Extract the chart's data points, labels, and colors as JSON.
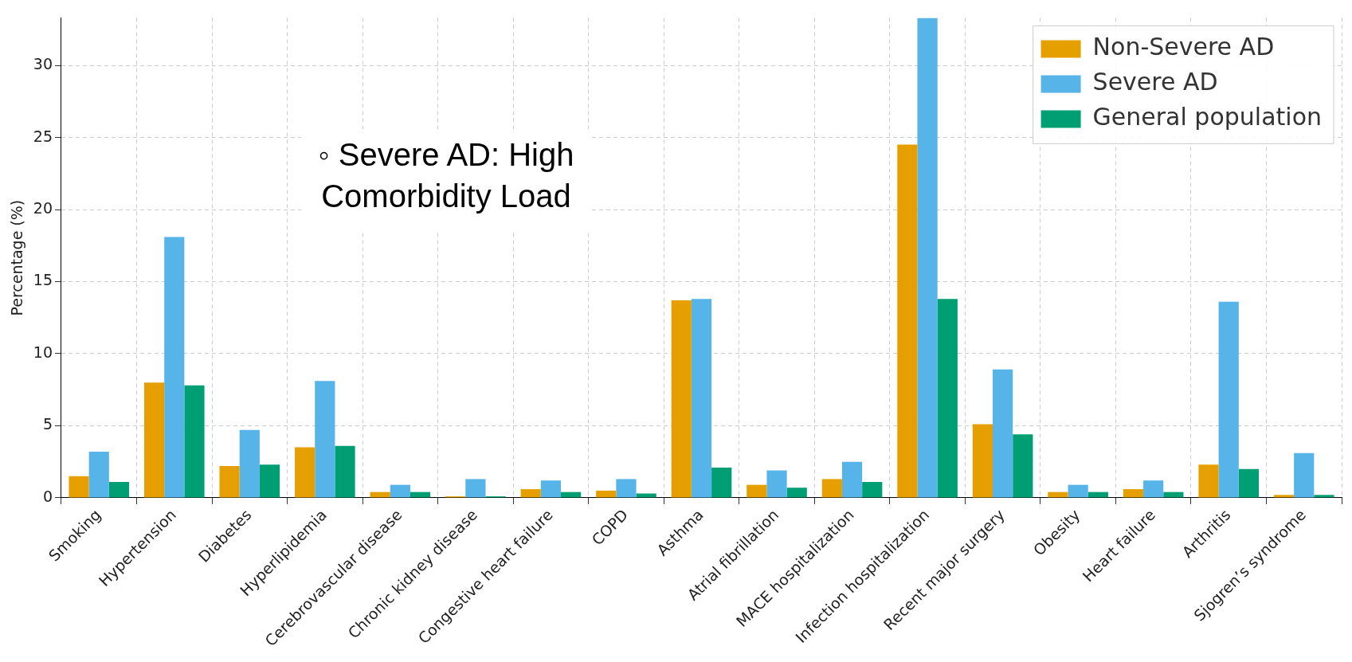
{
  "chart_data": {
    "type": "bar",
    "ylabel": "Percentage (%)",
    "categories": [
      "Smoking",
      "Hypertension",
      "Diabetes",
      "Hyperlipidemia",
      "Cerebrovascular disease",
      "Chronic kidney disease",
      "Congestive heart failure",
      "COPD",
      "Asthma",
      "Atrial fibrillation",
      "MACE hospitalization",
      "Infection hospitalization",
      "Recent major surgery",
      "Obesity",
      "Heart failure",
      "Arthritis",
      "Sjogren’s syndrome"
    ],
    "series": [
      {
        "name": "Non-Severe AD",
        "color": "#e69f00",
        "values": [
          1.5,
          8.0,
          2.2,
          3.5,
          0.4,
          0.1,
          0.6,
          0.5,
          13.7,
          0.9,
          1.3,
          24.5,
          5.1,
          0.4,
          0.6,
          2.3,
          0.2
        ]
      },
      {
        "name": "Severe AD",
        "color": "#56b4e9",
        "values": [
          3.2,
          18.1,
          4.7,
          8.1,
          0.9,
          1.3,
          1.2,
          1.3,
          13.8,
          1.9,
          2.5,
          33.3,
          8.9,
          0.9,
          1.2,
          13.6,
          3.1
        ]
      },
      {
        "name": "General population",
        "color": "#009e73",
        "values": [
          1.1,
          7.8,
          2.3,
          3.6,
          0.4,
          0.1,
          0.4,
          0.3,
          2.1,
          0.7,
          1.1,
          13.8,
          4.4,
          0.4,
          0.4,
          2.0,
          0.2
        ]
      }
    ],
    "ylim": [
      0,
      33.3
    ],
    "yticks": [
      0,
      5,
      10,
      15,
      20,
      25,
      30
    ],
    "grid": true,
    "legend": "top right",
    "annotations": [
      "◦ Severe AD: High Comorbidity Load"
    ]
  }
}
